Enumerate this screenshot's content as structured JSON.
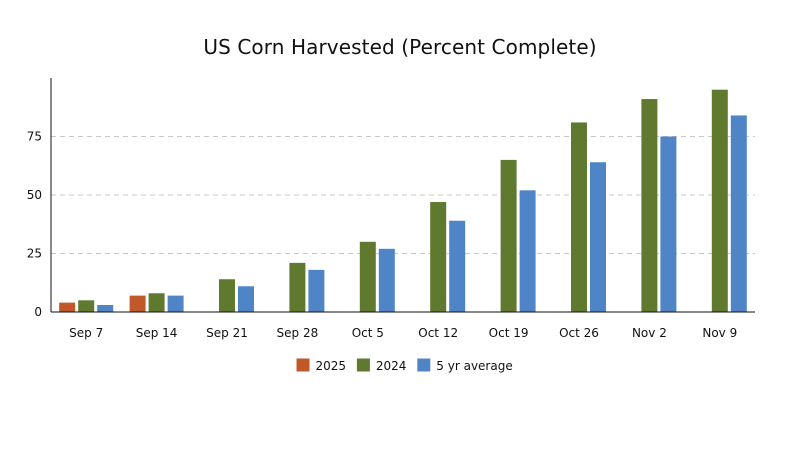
{
  "chart_data": {
    "type": "bar",
    "title": "US Corn Harvested (Percent Complete)",
    "xlabel": "",
    "ylabel": "",
    "categories": [
      "Sep 7",
      "Sep 14",
      "Sep 21",
      "Sep 28",
      "Oct 5",
      "Oct 12",
      "Oct 19",
      "Oct 26",
      "Nov 2",
      "Nov 9"
    ],
    "series": [
      {
        "name": "2025",
        "color": "#c0582a",
        "values": [
          4,
          7,
          null,
          null,
          null,
          null,
          null,
          null,
          null,
          null
        ]
      },
      {
        "name": "2024",
        "color": "#5f7a2e",
        "values": [
          5,
          8,
          14,
          21,
          30,
          47,
          65,
          81,
          91,
          95
        ]
      },
      {
        "name": "5 yr average",
        "color": "#4f85c6",
        "values": [
          3,
          7,
          11,
          18,
          27,
          39,
          52,
          64,
          75,
          84
        ]
      }
    ],
    "ylim": [
      0,
      100
    ],
    "yticks": [
      0,
      25,
      50,
      75
    ],
    "grid": true,
    "grid_style": "dashed",
    "legend_position": "bottom-center"
  }
}
